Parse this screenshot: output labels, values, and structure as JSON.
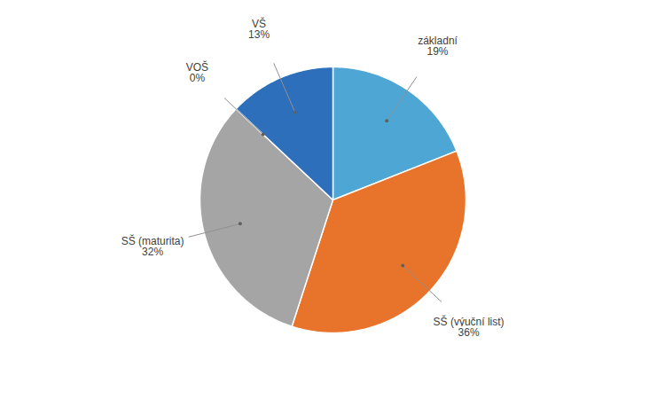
{
  "chart_data": {
    "type": "pie",
    "categories": [
      "základní",
      "SŠ (výuční list)",
      "SŠ (maturita)",
      "VOŠ",
      "VŠ"
    ],
    "values": [
      19,
      36,
      32,
      0,
      13
    ],
    "value_labels": [
      "19%",
      "36%",
      "32%",
      "0%",
      "13%"
    ],
    "colors": [
      "#4da6d4",
      "#e8732a",
      "#a5a5a5",
      "#a5a5a5",
      "#2e6fbc"
    ],
    "data_labels": true
  }
}
